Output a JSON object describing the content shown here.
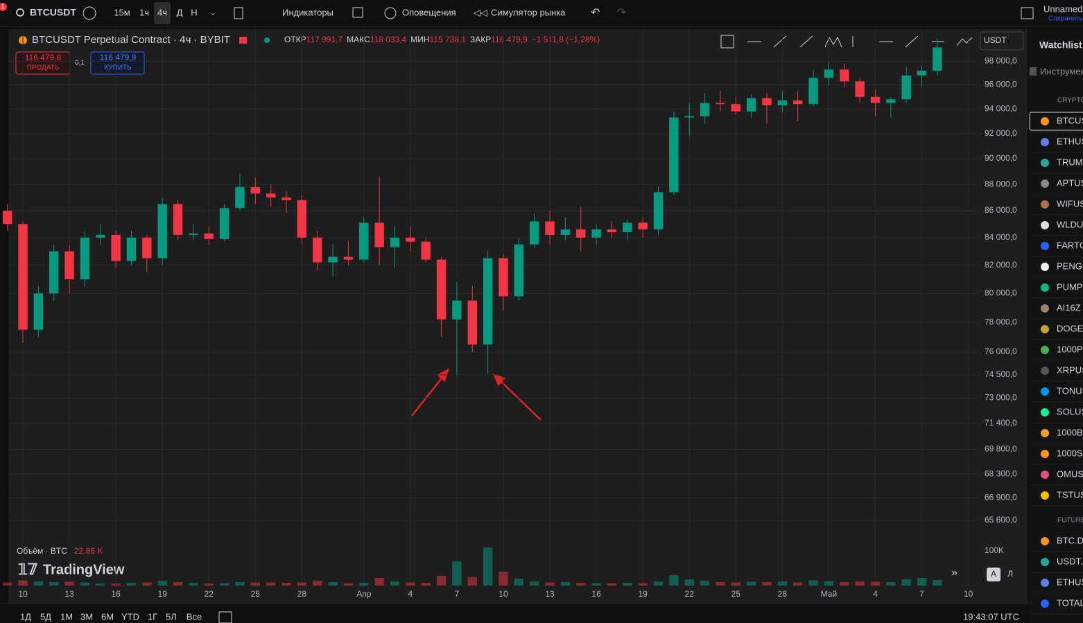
{
  "toolbar": {
    "badge": "1",
    "symbol": "BTCUSDT",
    "intervals": [
      "15м",
      "1ч",
      "4ч",
      "Д",
      "Н"
    ],
    "indicators": "Индикаторы",
    "alerts": "Оповещения",
    "replay": "Симулятор рынка",
    "user": "Unnamed",
    "save": "Сохранить"
  },
  "legend": {
    "title": "BTCUSDT Perpetual Contract · 4ч · BYBIT",
    "open_label": "ОТКР",
    "open": "117 991,7",
    "high_label": "МАКС",
    "high": "118 033,4",
    "low_label": "МИН",
    "low": "115 738,1",
    "close_label": "ЗАКР",
    "close": "116 479,9",
    "change": "−1 511,8 (−1,28%)"
  },
  "trade": {
    "sell_price": "116 479,8",
    "sell": "ПРОДАТЬ",
    "spread": "0,1",
    "buy_price": "116 479,9",
    "buy": "КУПИТЬ"
  },
  "currency": "USDT",
  "volume_legend": {
    "label": "Объём · BTC",
    "value": "22,86 K"
  },
  "logo": "TradingView",
  "scale_buttons": [
    "A",
    "Л"
  ],
  "ranges": [
    "1Д",
    "5Д",
    "1М",
    "3М",
    "6М",
    "YTD",
    "1Г",
    "5Л",
    "Все"
  ],
  "clock": "19:43:07 UTC",
  "watchlist": {
    "title": "Watchlist",
    "search": "Инструмент",
    "sections": [
      {
        "name": "CRYPTO",
        "items": [
          "BTCUS",
          "ETHUS",
          "TRUMI",
          "APTUS",
          "WIFUS",
          "WLDU:",
          "FARTC",
          "PENGU",
          "PUMPI",
          "AI16Z",
          "DOGEU",
          "1000P",
          "XRPUS",
          "TONUS",
          "SOLUS",
          "1000B",
          "1000S",
          "OMUSI",
          "TSTUS"
        ]
      },
      {
        "name": "FUTURE",
        "items": [
          "BTC.D",
          "USDT.I",
          "ETHUS",
          "TOTAL"
        ]
      }
    ]
  },
  "chart_data": {
    "type": "candlestick",
    "log_scale": true,
    "grid": true,
    "up_color": "#089981",
    "down_color": "#f23645",
    "xlim": [
      -0.94,
      61.6
    ],
    "xticks": [
      {
        "value": 0,
        "label": "10"
      },
      {
        "value": 3,
        "label": "13"
      },
      {
        "value": 6,
        "label": "16"
      },
      {
        "value": 9,
        "label": "19"
      },
      {
        "value": 12,
        "label": "22"
      },
      {
        "value": 15,
        "label": "25"
      },
      {
        "value": 18,
        "label": "28"
      },
      {
        "value": 22,
        "label": "Апр"
      },
      {
        "value": 25,
        "label": "4"
      },
      {
        "value": 28,
        "label": "7"
      },
      {
        "value": 31,
        "label": "10"
      },
      {
        "value": 34,
        "label": "13"
      },
      {
        "value": 37,
        "label": "16"
      },
      {
        "value": 40,
        "label": "19"
      },
      {
        "value": 43,
        "label": "22"
      },
      {
        "value": 46,
        "label": "25"
      },
      {
        "value": 49,
        "label": "28"
      },
      {
        "value": 52,
        "label": "Май"
      },
      {
        "value": 55,
        "label": "4"
      },
      {
        "value": 58,
        "label": "7"
      },
      {
        "value": 61,
        "label": "10"
      }
    ],
    "ylim": [
      64450,
      100800
    ],
    "yticks": [
      {
        "value": 98000,
        "label": "98 000,0"
      },
      {
        "value": 96000,
        "label": "96 000,0"
      },
      {
        "value": 94000,
        "label": "94 000,0"
      },
      {
        "value": 92000,
        "label": "92 000,0"
      },
      {
        "value": 90000,
        "label": "90 000,0"
      },
      {
        "value": 88000,
        "label": "88 000,0"
      },
      {
        "value": 86000,
        "label": "86 000,0"
      },
      {
        "value": 84000,
        "label": "84 000,0"
      },
      {
        "value": 82000,
        "label": "82 000,0"
      },
      {
        "value": 80000,
        "label": "80 000,0"
      },
      {
        "value": 78000,
        "label": "78 000,0"
      },
      {
        "value": 76000,
        "label": "76 000,0"
      },
      {
        "value": 74500,
        "label": "74 500,0"
      },
      {
        "value": 73000,
        "label": "73 000,0"
      },
      {
        "value": 71400,
        "label": "71 400,0"
      },
      {
        "value": 69800,
        "label": "69 800,0"
      },
      {
        "value": 68300,
        "label": "68 300,0"
      },
      {
        "value": 66900,
        "label": "66 900,0"
      },
      {
        "value": 65600,
        "label": "65 600,0"
      }
    ],
    "volume_lim": [
      0,
      120000
    ],
    "volume_ticks": [
      {
        "value": 100000,
        "label": "100K"
      }
    ],
    "candles": [
      [
        -1,
        86000,
        86500,
        84500,
        85000
      ],
      [
        0,
        85000,
        85200,
        76600,
        77500
      ],
      [
        1,
        77500,
        80500,
        77000,
        80000
      ],
      [
        2,
        80000,
        83500,
        79500,
        83000
      ],
      [
        3,
        83000,
        83500,
        80000,
        81000
      ],
      [
        4,
        81000,
        84500,
        80500,
        84000
      ],
      [
        5,
        84000,
        85000,
        83500,
        84200
      ],
      [
        6,
        84200,
        84500,
        81800,
        82300
      ],
      [
        7,
        82300,
        84500,
        82000,
        84000
      ],
      [
        8,
        84000,
        84200,
        81500,
        82500
      ],
      [
        9,
        82500,
        87000,
        82000,
        86500
      ],
      [
        10,
        86500,
        86800,
        83800,
        84200
      ],
      [
        11,
        84200,
        85000,
        83800,
        84300
      ],
      [
        12,
        84300,
        84800,
        83500,
        83900
      ],
      [
        13,
        83900,
        86500,
        83700,
        86200
      ],
      [
        14,
        86200,
        88800,
        86000,
        87800
      ],
      [
        15,
        87800,
        88500,
        86500,
        87300
      ],
      [
        16,
        87300,
        88000,
        86300,
        87000
      ],
      [
        17,
        87000,
        87500,
        85800,
        86800
      ],
      [
        18,
        86800,
        87200,
        83500,
        84000
      ],
      [
        19,
        84000,
        84500,
        81600,
        82200
      ],
      [
        20,
        82200,
        83500,
        81200,
        82600
      ],
      [
        21,
        82600,
        83800,
        82000,
        82400
      ],
      [
        22,
        82400,
        85500,
        82200,
        85100
      ],
      [
        23,
        85100,
        88600,
        82000,
        83300
      ],
      [
        24,
        83300,
        84800,
        81800,
        84000
      ],
      [
        25,
        84000,
        84800,
        83000,
        83700
      ],
      [
        26,
        83700,
        84000,
        82200,
        82400
      ],
      [
        27,
        82400,
        82600,
        77000,
        78200
      ],
      [
        28,
        78200,
        80800,
        74500,
        79500
      ],
      [
        29,
        79500,
        80500,
        76000,
        76500
      ],
      [
        30,
        76500,
        83000,
        74600,
        82500
      ],
      [
        31,
        82500,
        82800,
        78800,
        79800
      ],
      [
        32,
        79800,
        84000,
        79500,
        83500
      ],
      [
        33,
        83500,
        85800,
        83200,
        85200
      ],
      [
        34,
        85200,
        86000,
        83500,
        84200
      ],
      [
        35,
        84200,
        85500,
        83800,
        84600
      ],
      [
        36,
        84600,
        86300,
        83000,
        84000
      ],
      [
        37,
        84000,
        85000,
        83500,
        84600
      ],
      [
        38,
        84600,
        85200,
        84000,
        84400
      ],
      [
        39,
        84400,
        85300,
        83800,
        85100
      ],
      [
        40,
        85100,
        85500,
        84000,
        84600
      ],
      [
        41,
        84600,
        87800,
        84200,
        87400
      ],
      [
        42,
        87400,
        93800,
        87200,
        93300
      ],
      [
        43,
        93300,
        94500,
        91800,
        93400
      ],
      [
        44,
        93400,
        95300,
        92800,
        94500
      ],
      [
        45,
        94500,
        95500,
        93800,
        94400
      ],
      [
        46,
        94400,
        95000,
        93500,
        93800
      ],
      [
        47,
        93800,
        95200,
        93300,
        94900
      ],
      [
        48,
        94900,
        95300,
        92800,
        94300
      ],
      [
        49,
        94300,
        95500,
        93700,
        94700
      ],
      [
        50,
        94700,
        95500,
        93000,
        94400
      ],
      [
        51,
        94400,
        97300,
        94200,
        96600
      ],
      [
        52,
        96600,
        98000,
        96000,
        97300
      ],
      [
        53,
        97300,
        97800,
        95800,
        96300
      ],
      [
        54,
        96300,
        96600,
        94500,
        95000
      ],
      [
        55,
        95000,
        95600,
        93400,
        94500
      ],
      [
        56,
        94500,
        95000,
        93300,
        94800
      ],
      [
        57,
        94800,
        97500,
        94500,
        96800
      ],
      [
        58,
        96800,
        97600,
        95800,
        97200
      ],
      [
        59,
        97200,
        100000,
        96800,
        99200
      ]
    ],
    "volume": [
      9000,
      15000,
      12000,
      10000,
      11000,
      9000,
      6000,
      6000,
      8000,
      9000,
      14000,
      10000,
      8000,
      6000,
      7000,
      10000,
      9000,
      9000,
      8000,
      9000,
      14000,
      10000,
      7000,
      8000,
      22000,
      12000,
      9000,
      8000,
      28000,
      70000,
      25000,
      110000,
      40000,
      20000,
      12000,
      9000,
      10000,
      8000,
      7000,
      7000,
      8000,
      7000,
      12000,
      30000,
      18000,
      14000,
      10000,
      9000,
      11000,
      10000,
      12000,
      9000,
      15000,
      13000,
      10000,
      12000,
      11000,
      10000,
      18000,
      22000,
      16000
    ]
  }
}
